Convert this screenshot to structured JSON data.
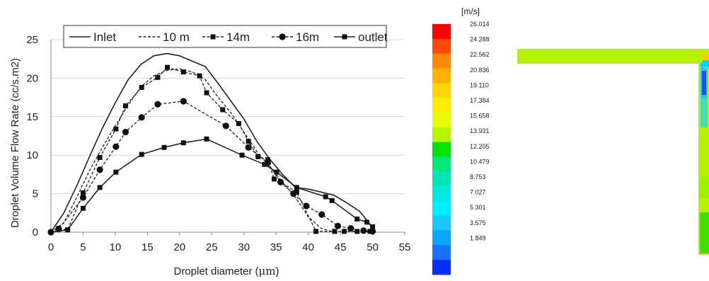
{
  "chart_data": [
    {
      "type": "line",
      "xlabel_prefix": "Droplet diameter (",
      "xlabel_unit": "μm",
      "xlabel_suffix": ")",
      "ylabel": "Droplet Volume Flow Rate (cc/s.m2)",
      "xlim": [
        0,
        55
      ],
      "ylim": [
        0,
        25
      ],
      "xticks": [
        0,
        5,
        10,
        15,
        20,
        25,
        30,
        35,
        40,
        45,
        50,
        55
      ],
      "yticks": [
        0,
        5,
        10,
        15,
        20,
        25
      ],
      "grid": "horizontal",
      "legend_position": "top",
      "series": [
        {
          "name": "Inlet",
          "line": "solid",
          "marker": "none",
          "color": "#222222",
          "x": [
            0,
            2,
            4,
            6,
            8,
            10,
            12,
            14,
            16,
            18,
            20,
            22,
            24,
            26,
            28,
            30,
            32,
            34,
            36,
            38,
            40,
            42,
            44,
            46,
            48,
            50
          ],
          "y": [
            0,
            2.5,
            6,
            9.8,
            13.5,
            16.8,
            19.8,
            21.8,
            22.9,
            23.2,
            22.9,
            22.2,
            21.5,
            19.3,
            17.0,
            14.7,
            11.8,
            9.5,
            7.5,
            5.8,
            5.6,
            5.2,
            4.8,
            3.8,
            2.7,
            0.6
          ]
        },
        {
          "name": "10 m",
          "line": "dashed",
          "marker": "none",
          "color": "#222222",
          "x": [
            0,
            2,
            4,
            6,
            8,
            10,
            12,
            14,
            16,
            18,
            20,
            22,
            24,
            26,
            28,
            30,
            32,
            34,
            36,
            38,
            40,
            42,
            44
          ],
          "y": [
            0,
            1.2,
            4.5,
            8.0,
            11.0,
            13.8,
            16.5,
            18.9,
            20.3,
            21.0,
            21.2,
            20.8,
            19.8,
            17.5,
            15.5,
            13.0,
            10.5,
            8.5,
            6.5,
            4.5,
            2.0,
            0.5,
            0
          ]
        },
        {
          "name": "14m",
          "line": "dashed",
          "marker": "square",
          "color": "#222222",
          "x": [
            0,
            1.2,
            2.6,
            5,
            7.6,
            10.1,
            11.6,
            14.1,
            16.6,
            18.1,
            20.6,
            23.1,
            24.2,
            26.7,
            29.2,
            30.7,
            32.2,
            33.7,
            34.7,
            35.7,
            38.2,
            41.2,
            44.1,
            45.6,
            47.6,
            49.6
          ],
          "y": [
            0,
            0.5,
            0.3,
            5.1,
            9.7,
            13.4,
            16.4,
            18.8,
            20.1,
            21.4,
            20.8,
            20.3,
            18.1,
            15.9,
            14.1,
            11.8,
            9.8,
            9.4,
            6.9,
            6.5,
            5.2,
            0.1,
            0.1,
            0.1,
            0.1,
            0.1
          ]
        },
        {
          "name": "16m",
          "line": "dashed",
          "marker": "circle",
          "color": "#222222",
          "x": [
            0,
            1.2,
            5,
            7.6,
            10.1,
            11.6,
            14.1,
            16.6,
            20.6,
            27.2,
            30.7,
            33.7,
            35.7,
            37.7,
            39.7,
            42.1,
            44.6,
            46.6,
            48.6,
            50
          ],
          "y": [
            0,
            0.4,
            4.5,
            8.1,
            11.1,
            13.0,
            14.9,
            16.6,
            17.0,
            13.8,
            11.0,
            9.0,
            6.5,
            5.0,
            3.4,
            2.3,
            0.8,
            0.5,
            0.2,
            0.1
          ]
        },
        {
          "name": "outlet",
          "line": "solid",
          "marker": "square",
          "color": "#222222",
          "x": [
            0,
            2.6,
            5,
            7.6,
            10.1,
            14.1,
            17.6,
            20.6,
            24.2,
            29.7,
            33.2,
            35.1,
            38.2,
            42.7,
            43.7,
            47.6,
            49.1,
            50
          ],
          "y": [
            0,
            0.3,
            3.1,
            5.8,
            7.8,
            10.1,
            11.0,
            11.6,
            12.1,
            10.0,
            8.8,
            7.8,
            5.8,
            4.6,
            4.1,
            1.7,
            1.3,
            0.7
          ]
        }
      ]
    },
    {
      "type": "heatmap",
      "unit": "[m/s]",
      "colorbar_labels": [
        "26.014",
        "24.288",
        "22.562",
        "20.836",
        "19.110",
        "17.384",
        "15.658",
        "13.931",
        "12.205",
        "10.479",
        "8.753",
        "7.027",
        "5.301",
        "3.575",
        "1.849"
      ],
      "colorbar_colors": [
        "#ff0000",
        "#ff4a00",
        "#ff8800",
        "#ffb200",
        "#ffd600",
        "#ffee00",
        "#e6ff00",
        "#b8f500",
        "#00e400",
        "#00e87a",
        "#00e6b4",
        "#00e8e0",
        "#00ecff",
        "#16c8ff",
        "#0aa6ff",
        "#1672ff",
        "#0a2eff"
      ],
      "field_color": "#b5f000"
    }
  ]
}
